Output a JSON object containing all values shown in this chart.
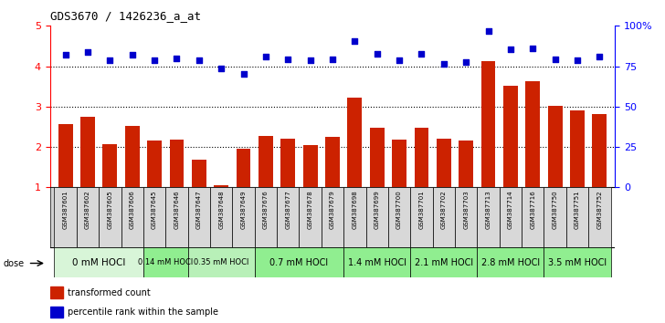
{
  "title": "GDS3670 / 1426236_a_at",
  "samples": [
    "GSM387601",
    "GSM387602",
    "GSM387605",
    "GSM387606",
    "GSM387645",
    "GSM387646",
    "GSM387647",
    "GSM387648",
    "GSM387649",
    "GSM387676",
    "GSM387677",
    "GSM387678",
    "GSM387679",
    "GSM387698",
    "GSM387699",
    "GSM387700",
    "GSM387701",
    "GSM387702",
    "GSM387703",
    "GSM387713",
    "GSM387714",
    "GSM387716",
    "GSM387750",
    "GSM387751",
    "GSM387752"
  ],
  "bar_values": [
    2.57,
    2.75,
    2.07,
    2.52,
    2.15,
    2.18,
    1.69,
    1.05,
    1.95,
    2.28,
    2.2,
    2.04,
    2.25,
    3.22,
    2.47,
    2.18,
    2.47,
    2.2,
    2.15,
    4.12,
    3.52,
    3.62,
    3.02,
    2.91,
    2.82
  ],
  "dot_values": [
    4.28,
    4.36,
    4.15,
    4.28,
    4.15,
    4.2,
    4.15,
    3.95,
    3.8,
    4.25,
    4.18,
    4.15,
    4.18,
    4.62,
    4.3,
    4.15,
    4.3,
    4.05,
    4.1,
    4.88,
    4.42,
    4.45,
    4.18,
    4.15,
    4.25
  ],
  "dose_groups": [
    {
      "label": "0 mM HOCl",
      "start": 0,
      "end": 4,
      "color": "#d8f5d8",
      "font_size": 7.5
    },
    {
      "label": "0.14 mM HOCl",
      "start": 4,
      "end": 6,
      "color": "#90ee90",
      "font_size": 6.0
    },
    {
      "label": "0.35 mM HOCl",
      "start": 6,
      "end": 9,
      "color": "#b8f0b8",
      "font_size": 6.0
    },
    {
      "label": "0.7 mM HOCl",
      "start": 9,
      "end": 13,
      "color": "#90ee90",
      "font_size": 7.0
    },
    {
      "label": "1.4 mM HOCl",
      "start": 13,
      "end": 16,
      "color": "#90ee90",
      "font_size": 7.0
    },
    {
      "label": "2.1 mM HOCl",
      "start": 16,
      "end": 19,
      "color": "#90ee90",
      "font_size": 7.0
    },
    {
      "label": "2.8 mM HOCl",
      "start": 19,
      "end": 22,
      "color": "#90ee90",
      "font_size": 7.0
    },
    {
      "label": "3.5 mM HOCl",
      "start": 22,
      "end": 25,
      "color": "#90ee90",
      "font_size": 7.0
    }
  ],
  "ylim_left": [
    1,
    5
  ],
  "ylim_right": [
    0,
    100
  ],
  "yticks_left": [
    1,
    2,
    3,
    4,
    5
  ],
  "yticks_right": [
    0,
    25,
    50,
    75,
    100
  ],
  "bar_color": "#cc2200",
  "dot_color": "#0000cc",
  "background_color": "#ffffff",
  "label_transformed": "transformed count",
  "label_percentile": "percentile rank within the sample"
}
